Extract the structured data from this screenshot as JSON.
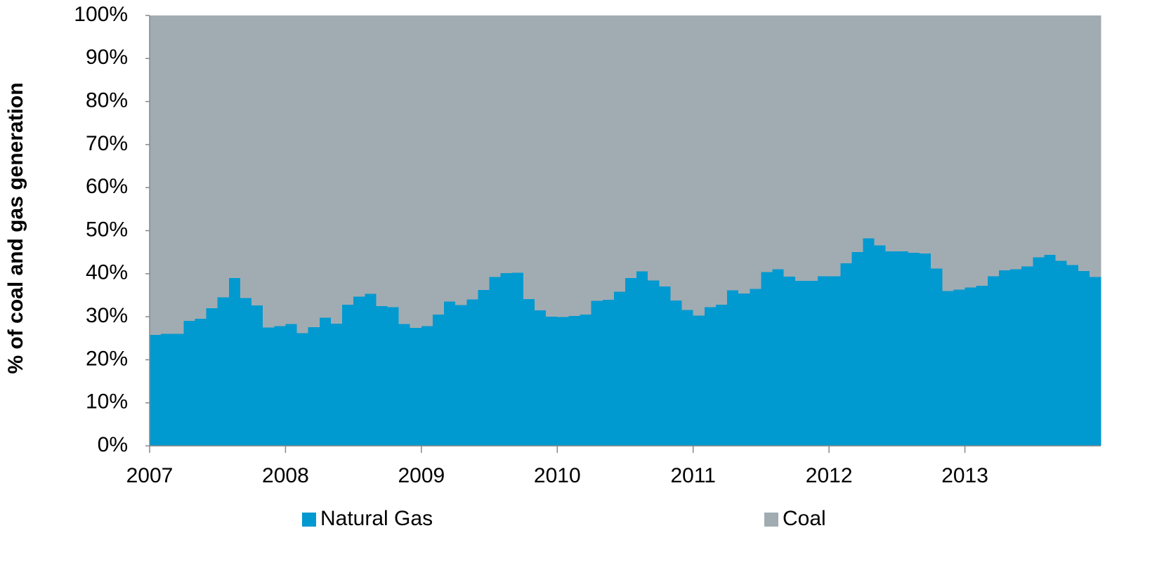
{
  "chart_data": {
    "type": "stacked_area_step",
    "y_label": "% of coal and gas generation",
    "categories": [
      "2007",
      null,
      null,
      null,
      null,
      null,
      null,
      null,
      null,
      null,
      null,
      null,
      "2008",
      null,
      null,
      null,
      null,
      null,
      null,
      null,
      null,
      null,
      null,
      null,
      "2009",
      null,
      null,
      null,
      null,
      null,
      null,
      null,
      null,
      null,
      null,
      null,
      "2010",
      null,
      null,
      null,
      null,
      null,
      null,
      null,
      null,
      null,
      null,
      null,
      "2011",
      null,
      null,
      null,
      null,
      null,
      null,
      null,
      null,
      null,
      null,
      null,
      "2012",
      null,
      null,
      null,
      null,
      null,
      null,
      null,
      null,
      null,
      null,
      null,
      "2013",
      null,
      null,
      null,
      null,
      null,
      null,
      null,
      null,
      null,
      null,
      null
    ],
    "series": [
      {
        "name": "Natural Gas",
        "color": "#0099d0",
        "values": [
          25.8,
          26,
          26,
          29,
          29.5,
          32,
          34.5,
          39,
          34.3,
          32.6,
          27.5,
          27.8,
          28.3,
          26.2,
          27.6,
          29.8,
          28.4,
          32.8,
          34.7,
          35.3,
          32.5,
          32.2,
          28.3,
          27.4,
          27.8,
          30.5,
          33.5,
          32.7,
          34,
          36.2,
          39.2,
          40.1,
          40.2,
          34.1,
          31.5,
          30,
          29.9,
          30.2,
          30.5,
          33.7,
          33.9,
          35.8,
          39,
          40.5,
          38.4,
          37,
          33.8,
          31.6,
          30.3,
          32.2,
          32.8,
          36.1,
          35.4,
          36.5,
          40.4,
          41,
          39.3,
          38.3,
          38.3,
          39.4,
          39.4,
          42.4,
          45,
          48.2,
          46.6,
          45.2,
          45.2,
          44.9,
          44.7,
          41.2,
          36,
          36.3,
          36.8,
          37.2,
          39.4,
          40.8,
          41,
          41.7,
          43.8,
          44.4,
          43,
          42,
          40.6,
          39.2
        ]
      },
      {
        "name": "Coal",
        "color": "#a1acb2",
        "values": [
          74.2,
          74,
          74,
          71,
          70.5,
          68,
          65.5,
          61,
          65.7,
          67.4,
          72.5,
          72.2,
          71.7,
          73.8,
          72.4,
          70.2,
          71.6,
          67.2,
          65.3,
          64.7,
          67.5,
          67.8,
          71.7,
          72.6,
          72.2,
          69.5,
          66.5,
          67.3,
          66,
          63.8,
          60.8,
          59.9,
          59.8,
          65.9,
          68.5,
          70,
          70.1,
          69.8,
          69.5,
          66.3,
          66.1,
          64.2,
          61,
          59.5,
          61.6,
          63,
          66.2,
          68.4,
          69.7,
          67.8,
          67.2,
          63.9,
          64.6,
          63.5,
          59.6,
          59,
          60.7,
          61.7,
          61.7,
          60.6,
          60.6,
          57.6,
          55,
          51.8,
          53.4,
          54.8,
          54.8,
          55.1,
          55.3,
          58.8,
          64,
          63.7,
          63.2,
          62.8,
          60.6,
          59.2,
          59,
          58.3,
          56.2,
          55.6,
          57,
          58,
          59.4,
          60.8
        ]
      }
    ],
    "ylim": [
      0,
      100
    ],
    "yticks": [
      {
        "value": 0,
        "label": "0%"
      },
      {
        "value": 10,
        "label": "10%"
      },
      {
        "value": 20,
        "label": "20%"
      },
      {
        "value": 30,
        "label": "30%"
      },
      {
        "value": 40,
        "label": "40%"
      },
      {
        "value": 50,
        "label": "50%"
      },
      {
        "value": 60,
        "label": "60%"
      },
      {
        "value": 70,
        "label": "70%"
      },
      {
        "value": 80,
        "label": "80%"
      },
      {
        "value": 90,
        "label": "90%"
      },
      {
        "value": 100,
        "label": "100%"
      }
    ],
    "legend": "bottom"
  }
}
